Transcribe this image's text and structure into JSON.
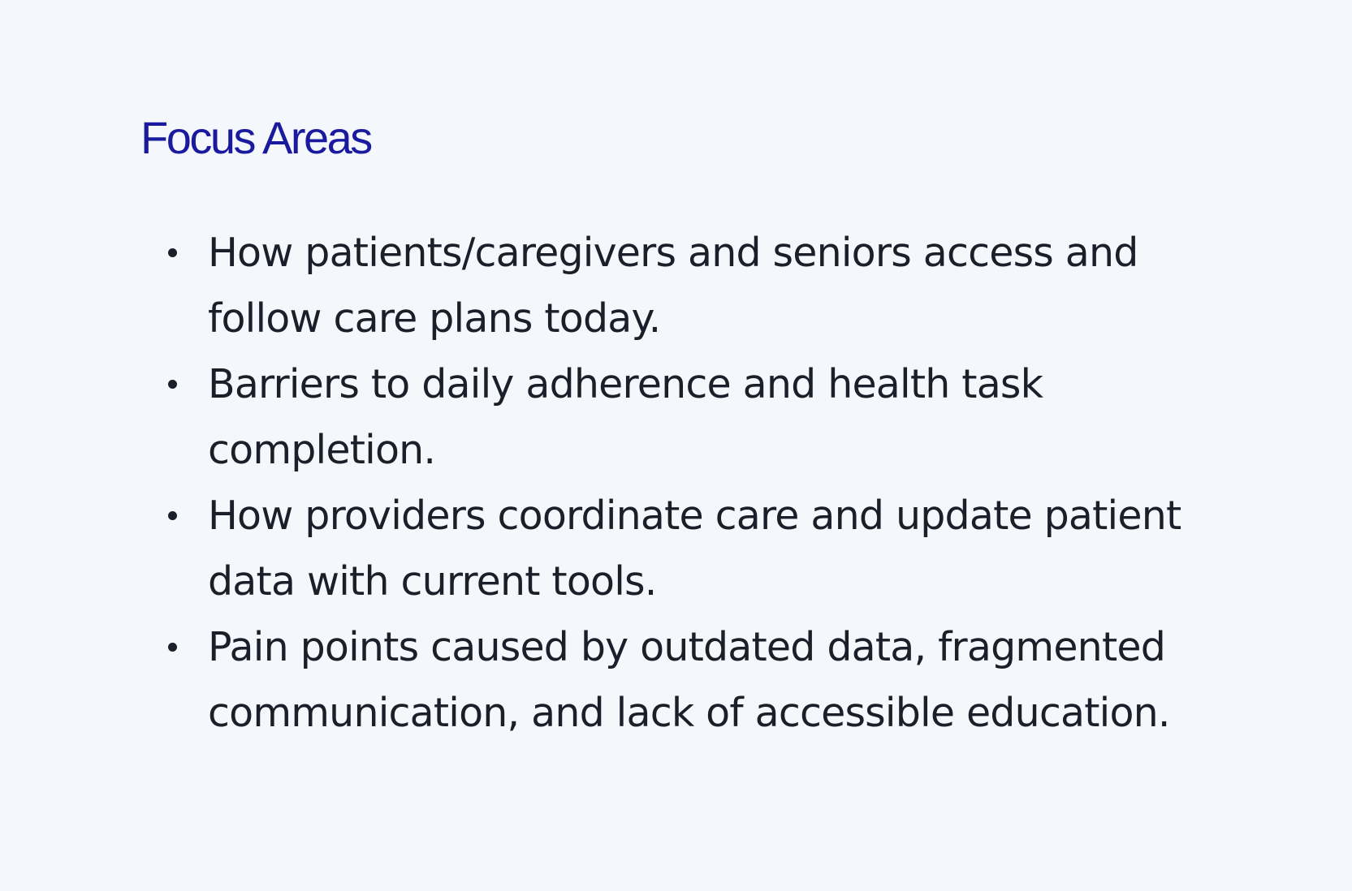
{
  "section": {
    "title": "Focus Areas",
    "items": [
      "How patients/caregivers and seniors access and follow care plans today.",
      "Barriers to daily adherence and health task completion.",
      "How providers coordinate care and update patient data with current tools.",
      "Pain points caused by outdated data, fragmented communication, and lack of accessible education."
    ]
  },
  "colors": {
    "background": "#f4f7fb",
    "heading": "#1a1a9e",
    "body_text": "#1b1f2a"
  }
}
